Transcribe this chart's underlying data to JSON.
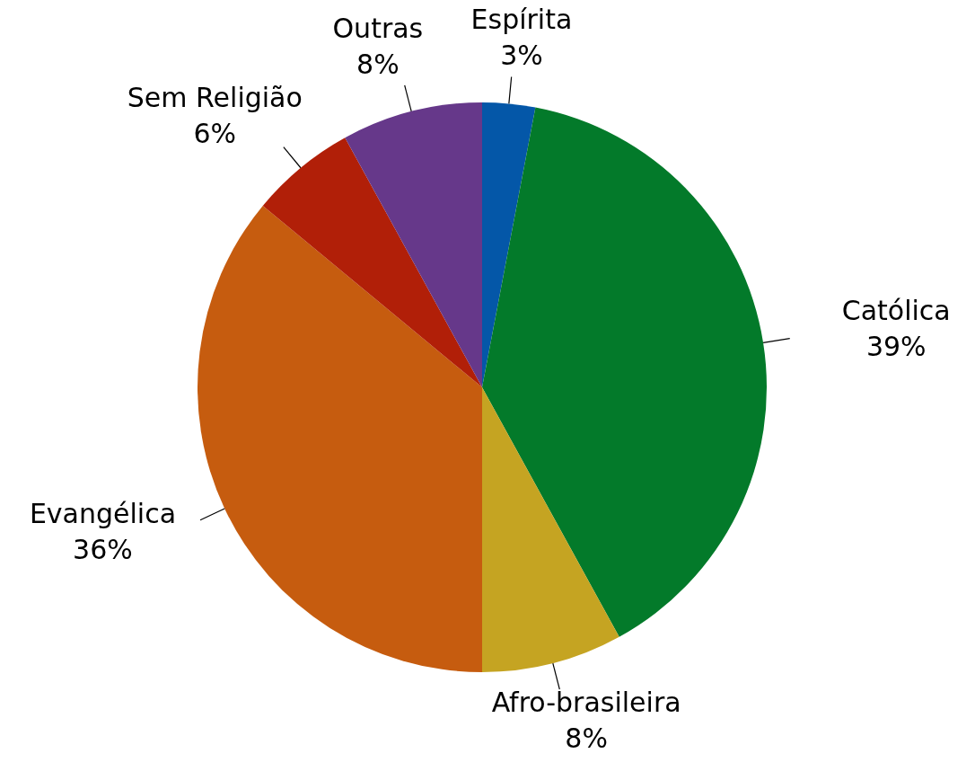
{
  "chart_data": {
    "type": "pie",
    "categories": [
      "Espírita",
      "Católica",
      "Afro-brasileira",
      "Evangélica",
      "Sem Religião",
      "Outras"
    ],
    "values": [
      3,
      39,
      8,
      36,
      6,
      8
    ],
    "colors": [
      "#0457a8",
      "#037a2a",
      "#c5a422",
      "#c65c0f",
      "#b11f08",
      "#66388a"
    ],
    "value_labels": [
      "3%",
      "39%",
      "8%",
      "36%",
      "6%",
      "8%"
    ]
  }
}
